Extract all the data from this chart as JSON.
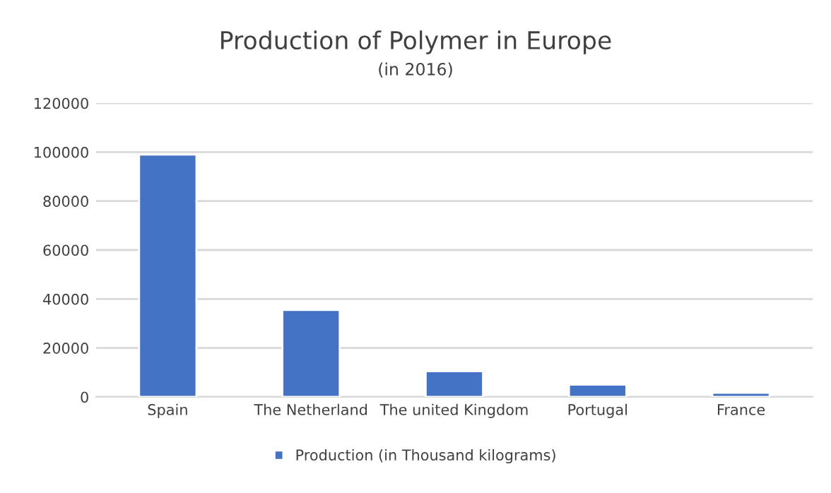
{
  "chart_data": {
    "type": "bar",
    "title": "Production of Polymer in Europe",
    "subtitle": "(in 2016)",
    "categories": [
      "Spain",
      "The Netherland",
      "The united Kingdom",
      "Portugal",
      "France"
    ],
    "series": [
      {
        "name": "Production (in Thousand kilograms)",
        "color": "#4472c4",
        "values": [
          99000,
          35500,
          10500,
          5000,
          1700
        ]
      }
    ],
    "ylim": [
      0,
      120000
    ],
    "yticks": [
      0,
      20000,
      40000,
      60000,
      80000,
      100000,
      120000
    ],
    "grid": "y",
    "legend": "bottom"
  }
}
